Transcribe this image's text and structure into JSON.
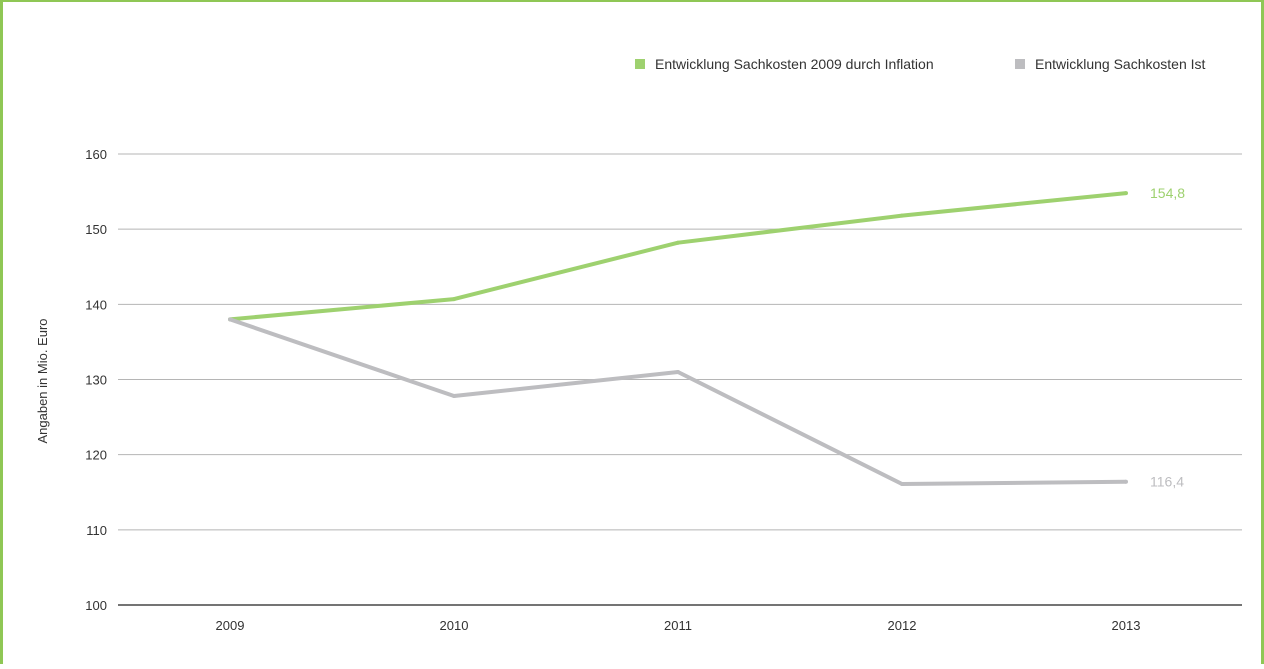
{
  "chart_data": {
    "type": "line",
    "title": "",
    "xlabel": "",
    "ylabel": "Angaben in Mio. Euro",
    "categories": [
      "2009",
      "2010",
      "2011",
      "2012",
      "2013"
    ],
    "ylim": [
      100,
      160
    ],
    "yticks": [
      "100",
      "110",
      "120",
      "130",
      "140",
      "150",
      "160"
    ],
    "grid": true,
    "legend_position": "top-right",
    "series": [
      {
        "name": "Entwicklung Sachkosten 2009 durch Inflation",
        "color": "#9ed16f",
        "values": [
          138.0,
          140.7,
          148.2,
          151.8,
          154.8
        ],
        "end_label": "154,8"
      },
      {
        "name": "Entwicklung Sachkosten Ist",
        "color": "#bdbdc0",
        "values": [
          138.0,
          127.8,
          131.0,
          116.1,
          116.4
        ],
        "end_label": "116,4"
      }
    ]
  }
}
